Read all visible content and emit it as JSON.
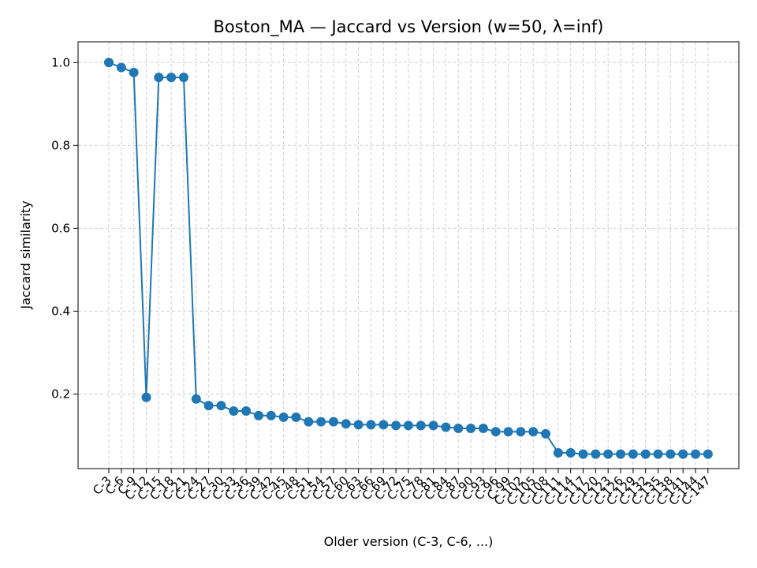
{
  "chart_data": {
    "type": "line",
    "title": "Boston_MA — Jaccard vs Version (w=50, λ=inf)",
    "xlabel": "Older version (C-3, C-6, ...)",
    "ylabel": "Jaccard similarity",
    "ylim": [
      0.02,
      1.05
    ],
    "yticks": [
      "0.2",
      "0.4",
      "0.6",
      "0.8",
      "1.0"
    ],
    "grid": true,
    "line_color": "#1f77b4",
    "categories": [
      "C-3",
      "C-6",
      "C-9",
      "C-12",
      "C-15",
      "C-18",
      "C-21",
      "C-24",
      "C-27",
      "C-30",
      "C-33",
      "C-36",
      "C-39",
      "C-42",
      "C-45",
      "C-48",
      "C-51",
      "C-54",
      "C-57",
      "C-60",
      "C-63",
      "C-66",
      "C-69",
      "C-72",
      "C-75",
      "C-78",
      "C-81",
      "C-84",
      "C-87",
      "C-90",
      "C-93",
      "C-96",
      "C-99",
      "C-102",
      "C-105",
      "C-108",
      "C-111",
      "C-114",
      "C-117",
      "C-120",
      "C-123",
      "C-126",
      "C-129",
      "C-132",
      "C-135",
      "C-138",
      "C-141",
      "C-144",
      "C-147"
    ],
    "values": [
      1.0,
      0.988,
      0.976,
      0.192,
      0.964,
      0.964,
      0.964,
      0.188,
      0.172,
      0.172,
      0.159,
      0.159,
      0.148,
      0.148,
      0.144,
      0.144,
      0.133,
      0.133,
      0.133,
      0.128,
      0.126,
      0.126,
      0.126,
      0.124,
      0.124,
      0.124,
      0.124,
      0.12,
      0.117,
      0.117,
      0.117,
      0.109,
      0.109,
      0.109,
      0.109,
      0.104,
      0.058,
      0.058,
      0.055,
      0.055,
      0.055,
      0.055,
      0.055,
      0.055,
      0.055,
      0.055,
      0.055,
      0.055,
      0.055
    ]
  }
}
